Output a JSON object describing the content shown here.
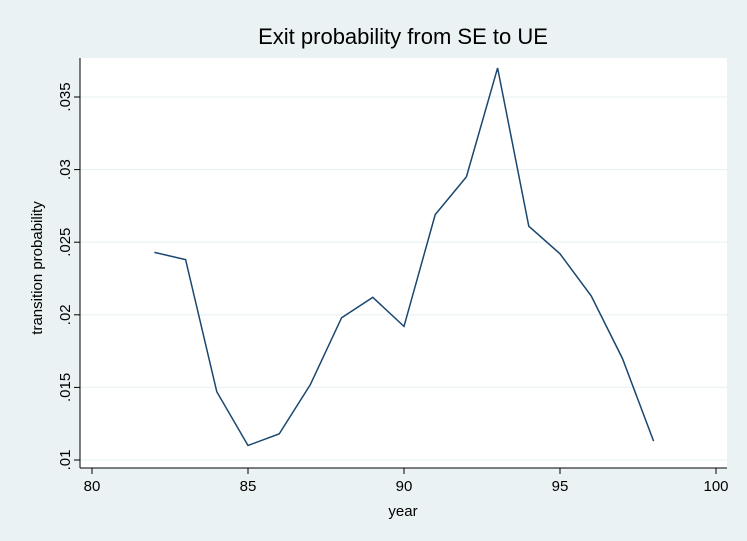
{
  "chart_data": {
    "type": "line",
    "title": "Exit probability from SE to UE",
    "x_label": "year",
    "y_label": "transition probability",
    "x": [
      82,
      83,
      84,
      85,
      86,
      87,
      88,
      89,
      90,
      91,
      92,
      93,
      94,
      95,
      96,
      97,
      98
    ],
    "series": [
      {
        "name": "transition probability",
        "color": "#1a476f",
        "values": [
          0.0243,
          0.0238,
          0.0147,
          0.011,
          0.0118,
          0.0152,
          0.0198,
          0.0212,
          0.0192,
          0.0269,
          0.0295,
          0.037,
          0.0261,
          0.0242,
          0.0213,
          0.017,
          0.0113
        ]
      }
    ],
    "xlim": [
      80,
      100
    ],
    "xticks": [
      80,
      85,
      90,
      95,
      100
    ],
    "ylim": [
      0.01,
      0.035
    ],
    "yticks": [
      {
        "value": 0.01,
        "label": ".01"
      },
      {
        "value": 0.015,
        "label": ".015"
      },
      {
        "value": 0.02,
        "label": ".02"
      },
      {
        "value": 0.025,
        "label": ".025"
      },
      {
        "value": 0.03,
        "label": ".03"
      },
      {
        "value": 0.035,
        "label": ".035"
      }
    ],
    "grid": true
  }
}
